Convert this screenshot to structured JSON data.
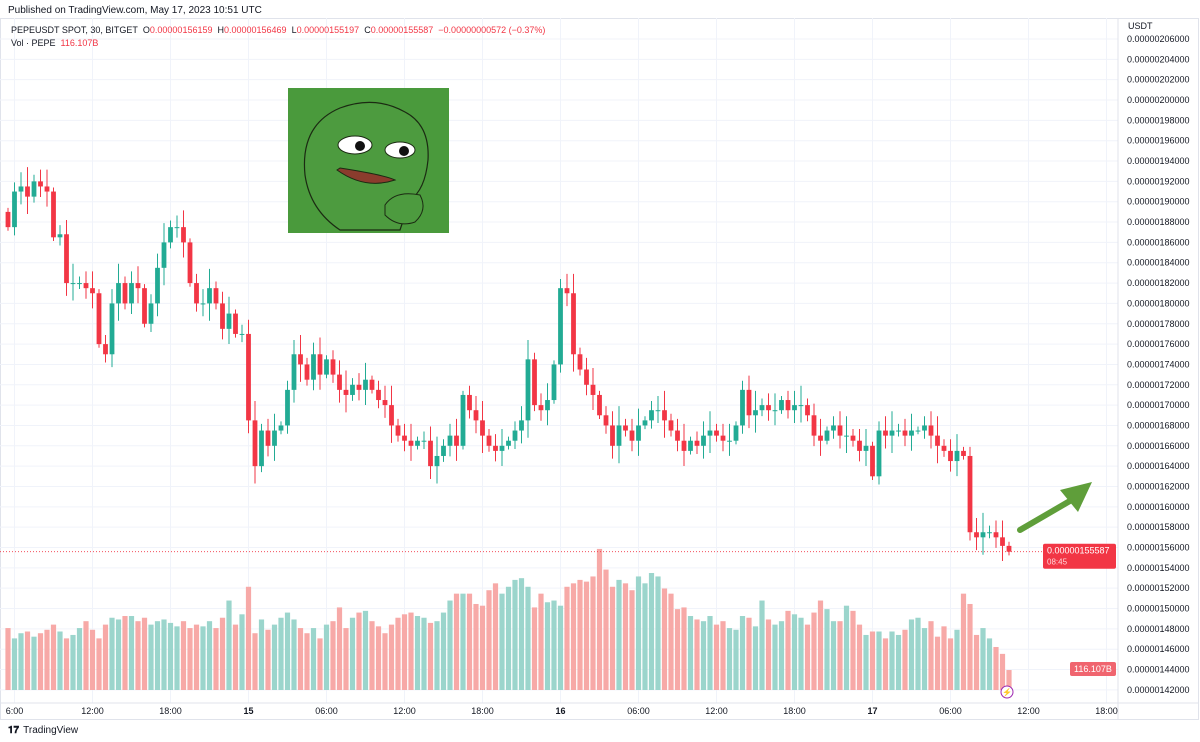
{
  "published": "Published on TradingView.com, May 17, 2023 10:51 UTC",
  "legend": {
    "symbol": "PEPEUSDT SPOT, 30, BITGET",
    "o_label": "O",
    "o": "0.00000156159",
    "h_label": "H",
    "h": "0.00000156469",
    "l_label": "L",
    "l": "0.00000155197",
    "c_label": "C",
    "c": "0.00000155587",
    "change": "−0.00000000572 (−0.37%)",
    "vol_label": "Vol · PEPE",
    "vol": "116.107B"
  },
  "footer": {
    "brand": "TradingView"
  },
  "colors": {
    "up": "#22ab94",
    "down": "#f23645",
    "vol_up": "#9bd5cc",
    "vol_down": "#f7a9a7",
    "pepe_bg": "#4a9a3c",
    "arrow": "#5f9e3a"
  },
  "chart_data": {
    "type": "candlestick",
    "currency": "USDT",
    "price_unit": "1e-6",
    "ylim": [
      1.41,
      2.07
    ],
    "y_ticks": [
      "0.00000206000",
      "0.00000204000",
      "0.00000202000",
      "0.00000200000",
      "0.00000198000",
      "0.00000196000",
      "0.00000194000",
      "0.00000192000",
      "0.00000190000",
      "0.00000188000",
      "0.00000186000",
      "0.00000184000",
      "0.00000182000",
      "0.00000180000",
      "0.00000178000",
      "0.00000176000",
      "0.00000174000",
      "0.00000172000",
      "0.00000170000",
      "0.00000168000",
      "0.00000166000",
      "0.00000164000",
      "0.00000162000",
      "0.00000160000",
      "0.00000158000",
      "0.00000156000",
      "0.00000154000",
      "0.00000152000",
      "0.00000150000",
      "0.00000148000",
      "0.00000146000",
      "0.00000144000",
      "0.00000142000"
    ],
    "x_ticks": [
      {
        "label": "6:00",
        "index": 1
      },
      {
        "label": "12:00",
        "index": 13
      },
      {
        "label": "18:00",
        "index": 25
      },
      {
        "label": "15",
        "index": 37
      },
      {
        "label": "06:00",
        "index": 49
      },
      {
        "label": "12:00",
        "index": 61
      },
      {
        "label": "18:00",
        "index": 73
      },
      {
        "label": "16",
        "index": 85
      },
      {
        "label": "06:00",
        "index": 97
      },
      {
        "label": "12:00",
        "index": 109
      },
      {
        "label": "18:00",
        "index": 121
      },
      {
        "label": "17",
        "index": 133
      },
      {
        "label": "06:00",
        "index": 145
      },
      {
        "label": "12:00",
        "index": 157
      },
      {
        "label": "18:00",
        "index": 169
      }
    ],
    "first_open": 1.89,
    "closes": [
      1.875,
      1.91,
      1.915,
      1.905,
      1.92,
      1.915,
      1.91,
      1.865,
      1.868,
      1.82,
      1.82,
      1.82,
      1.815,
      1.81,
      1.76,
      1.75,
      1.8,
      1.82,
      1.8,
      1.82,
      1.815,
      1.78,
      1.8,
      1.835,
      1.86,
      1.875,
      1.875,
      1.86,
      1.82,
      1.8,
      1.8,
      1.815,
      1.8,
      1.775,
      1.79,
      1.77,
      1.77,
      1.685,
      1.64,
      1.675,
      1.66,
      1.675,
      1.68,
      1.715,
      1.75,
      1.74,
      1.725,
      1.75,
      1.73,
      1.745,
      1.73,
      1.715,
      1.71,
      1.72,
      1.715,
      1.725,
      1.715,
      1.705,
      1.7,
      1.68,
      1.67,
      1.665,
      1.66,
      1.665,
      1.665,
      1.64,
      1.65,
      1.66,
      1.67,
      1.66,
      1.71,
      1.695,
      1.685,
      1.67,
      1.66,
      1.655,
      1.66,
      1.665,
      1.675,
      1.685,
      1.745,
      1.7,
      1.695,
      1.705,
      1.74,
      1.815,
      1.81,
      1.75,
      1.735,
      1.72,
      1.71,
      1.69,
      1.68,
      1.66,
      1.68,
      1.675,
      1.665,
      1.68,
      1.685,
      1.695,
      1.695,
      1.685,
      1.675,
      1.665,
      1.655,
      1.665,
      1.66,
      1.67,
      1.675,
      1.67,
      1.665,
      1.665,
      1.68,
      1.715,
      1.69,
      1.695,
      1.7,
      1.695,
      1.695,
      1.705,
      1.695,
      1.7,
      1.7,
      1.69,
      1.67,
      1.665,
      1.675,
      1.68,
      1.67,
      1.67,
      1.665,
      1.655,
      1.66,
      1.63,
      1.675,
      1.67,
      1.675,
      1.675,
      1.67,
      1.675,
      1.675,
      1.68,
      1.67,
      1.66,
      1.655,
      1.645,
      1.655,
      1.65,
      1.575,
      1.57,
      1.575,
      1.575,
      1.57,
      1.5616,
      1.55587
    ],
    "volumes_B": [
      360,
      300,
      330,
      340,
      310,
      330,
      350,
      380,
      340,
      300,
      320,
      360,
      400,
      350,
      300,
      380,
      420,
      410,
      430,
      430,
      400,
      420,
      380,
      400,
      410,
      390,
      370,
      400,
      360,
      380,
      370,
      400,
      360,
      420,
      520,
      380,
      440,
      600,
      330,
      410,
      350,
      380,
      420,
      450,
      410,
      360,
      330,
      360,
      300,
      380,
      400,
      480,
      360,
      420,
      450,
      460,
      400,
      370,
      330,
      380,
      420,
      440,
      450,
      430,
      420,
      390,
      400,
      450,
      520,
      560,
      560,
      560,
      500,
      490,
      580,
      620,
      560,
      600,
      640,
      650,
      600,
      480,
      560,
      510,
      520,
      490,
      600,
      620,
      640,
      630,
      660,
      820,
      700,
      600,
      640,
      620,
      580,
      660,
      620,
      680,
      660,
      590,
      560,
      470,
      480,
      430,
      410,
      400,
      430,
      380,
      400,
      360,
      350,
      430,
      420,
      370,
      520,
      410,
      380,
      400,
      460,
      440,
      420,
      380,
      450,
      520,
      470,
      400,
      400,
      490,
      460,
      380,
      320,
      340,
      340,
      300,
      340,
      320,
      350,
      410,
      420,
      360,
      400,
      310,
      370,
      300,
      350,
      560,
      500,
      320,
      360,
      300,
      250,
      210,
      116.107
    ],
    "last_price": "0.00000155587",
    "countdown": "08:45",
    "last_volume": "116.107B"
  }
}
